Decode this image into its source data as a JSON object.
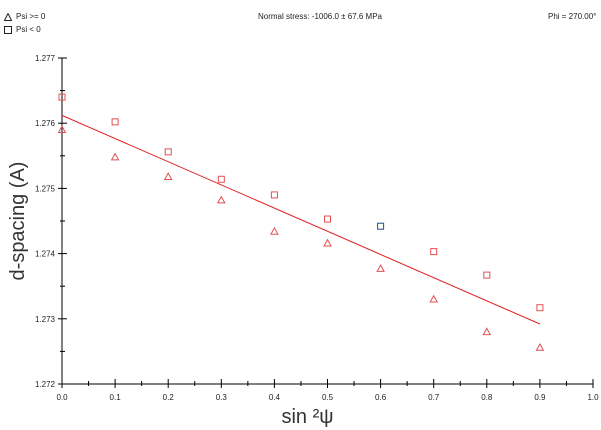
{
  "header": {
    "stress_label": "Normal stress: -1006.0 ± 67.6 MPa",
    "phi_label": "Phi = 270.00°"
  },
  "legend": [
    {
      "label": "Psi >= 0",
      "marker": "triangle-icon"
    },
    {
      "label": "Psi <  0",
      "marker": "square-icon"
    }
  ],
  "colors": {
    "marker": "#e05050",
    "highlight": "#1f4e8c",
    "fit_line": "#e02020",
    "axis": "#000000"
  },
  "chart_data": {
    "type": "scatter",
    "xlabel": "sin ²ψ",
    "ylabel": "d-spacing (A)",
    "xlim": [
      0.0,
      1.0
    ],
    "ylim": [
      1.272,
      1.277
    ],
    "x_ticks": [
      "0.0",
      "0.1",
      "0.2",
      "0.3",
      "0.4",
      "0.5",
      "0.6",
      "0.7",
      "0.8",
      "0.9",
      "1.0"
    ],
    "y_ticks": [
      "1.272",
      "1.273",
      "1.274",
      "1.275",
      "1.276",
      "1.277"
    ],
    "grid": false,
    "legend_position": "top-left",
    "series": [
      {
        "name": "Psi >= 0",
        "marker": "triangle",
        "x": [
          0.0,
          0.1,
          0.2,
          0.3,
          0.4,
          0.5,
          0.6,
          0.7,
          0.8,
          0.9
        ],
        "y": [
          1.2759,
          1.27548,
          1.27518,
          1.27482,
          1.27434,
          1.27416,
          1.27377,
          1.2733,
          1.2728,
          1.27256
        ]
      },
      {
        "name": "Psi <  0",
        "marker": "square",
        "x": [
          0.0,
          0.1,
          0.2,
          0.3,
          0.4,
          0.5,
          0.6,
          0.7,
          0.8,
          0.9
        ],
        "y": [
          1.2764,
          1.27602,
          1.27556,
          1.27514,
          1.2749,
          1.27453,
          1.27442,
          1.27403,
          1.27367,
          1.27317
        ],
        "highlight_index": 6
      }
    ],
    "fit_line": {
      "x": [
        0.0,
        0.9
      ],
      "y": [
        1.27612,
        1.27292
      ]
    }
  }
}
